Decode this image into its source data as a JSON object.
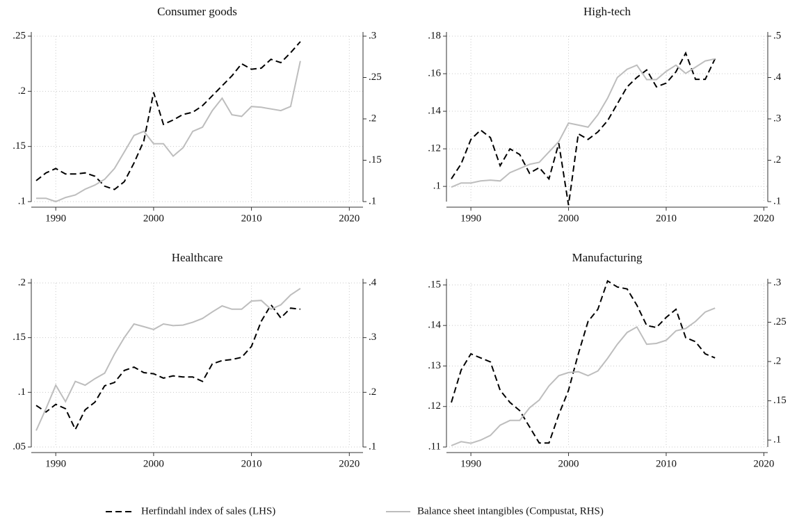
{
  "chart_data": [
    {
      "type": "line",
      "title": "Consumer goods",
      "legend": "bottom",
      "x": [
        1988,
        1989,
        1990,
        1991,
        1992,
        1993,
        1994,
        1995,
        1996,
        1997,
        1998,
        1999,
        2000,
        2001,
        2002,
        2003,
        2004,
        2005,
        2006,
        2007,
        2008,
        2009,
        2010,
        2011,
        2012,
        2013,
        2014,
        2015
      ],
      "xlim": [
        1987.5,
        2021.4
      ],
      "xticks": [
        1990,
        2000,
        2010,
        2020
      ],
      "ylim": [
        0.1,
        0.25
      ],
      "yticks": [
        {
          "value": 0.1,
          "label": ".1"
        },
        {
          "value": 0.15,
          "label": ".15"
        },
        {
          "value": 0.2,
          "label": ".2"
        },
        {
          "value": 0.25,
          "label": ".25"
        }
      ],
      "y2lim": [
        0.1,
        0.3
      ],
      "y2ticks": [
        {
          "value": 0.1,
          "label": ".1"
        },
        {
          "value": 0.15,
          "label": ".15"
        },
        {
          "value": 0.2,
          "label": ".2"
        },
        {
          "value": 0.25,
          "label": ".25"
        },
        {
          "value": 0.3,
          "label": ".3"
        }
      ],
      "grid": true,
      "series": [
        {
          "name": "Herfindahl index of sales (LHS)",
          "color": "#000000",
          "style": "dashed",
          "values": [
            0.119,
            0.126,
            0.13,
            0.125,
            0.125,
            0.126,
            0.123,
            0.114,
            0.111,
            0.118,
            0.135,
            0.155,
            0.199,
            0.17,
            0.174,
            0.179,
            0.181,
            0.187,
            0.196,
            0.205,
            0.214,
            0.225,
            0.22,
            0.221,
            0.229,
            0.226,
            0.235,
            0.245
          ]
        },
        {
          "name": "Balance sheet intangibles (Compustat, RHS)",
          "color": "#bdbdbd",
          "style": "solid",
          "axis": "y2",
          "values": [
            0.104,
            0.104,
            0.1,
            0.105,
            0.108,
            0.115,
            0.12,
            0.127,
            0.14,
            0.16,
            0.18,
            0.185,
            0.17,
            0.17,
            0.155,
            0.165,
            0.185,
            0.19,
            0.21,
            0.225,
            0.205,
            0.203,
            0.215,
            0.214,
            0.212,
            0.21,
            0.215,
            0.27
          ]
        }
      ]
    },
    {
      "type": "line",
      "title": "High-tech",
      "x": [
        1988,
        1989,
        1990,
        1991,
        1992,
        1993,
        1994,
        1995,
        1996,
        1997,
        1998,
        1999,
        2000,
        2001,
        2002,
        2003,
        2004,
        2005,
        2006,
        2007,
        2008,
        2009,
        2010,
        2011,
        2012,
        2013,
        2014,
        2015
      ],
      "xlim": [
        1987.5,
        2020.4
      ],
      "xticks": [
        1990,
        2000,
        2010,
        2020
      ],
      "ylim": [
        0.0919,
        0.18
      ],
      "yticks": [
        {
          "value": 0.1,
          "label": ".1"
        },
        {
          "value": 0.12,
          "label": ".12"
        },
        {
          "value": 0.14,
          "label": ".14"
        },
        {
          "value": 0.16,
          "label": ".16"
        },
        {
          "value": 0.18,
          "label": ".18"
        }
      ],
      "y2lim": [
        0.1,
        0.5
      ],
      "y2ticks": [
        {
          "value": 0.1,
          "label": ".1"
        },
        {
          "value": 0.2,
          "label": ".2"
        },
        {
          "value": 0.3,
          "label": ".3"
        },
        {
          "value": 0.4,
          "label": ".4"
        },
        {
          "value": 0.5,
          "label": ".5"
        }
      ],
      "grid": true,
      "series": [
        {
          "name": "Herfindahl index of sales (LHS)",
          "color": "#000000",
          "style": "dashed",
          "values": [
            0.104,
            0.112,
            0.125,
            0.13,
            0.126,
            0.111,
            0.12,
            0.117,
            0.107,
            0.11,
            0.104,
            0.123,
            0.09,
            0.128,
            0.125,
            0.129,
            0.135,
            0.144,
            0.153,
            0.158,
            0.162,
            0.153,
            0.155,
            0.161,
            0.171,
            0.157,
            0.157,
            0.168
          ]
        },
        {
          "name": "Balance sheet intangibles (Compustat, RHS)",
          "color": "#bdbdbd",
          "style": "solid",
          "axis": "y2",
          "values": [
            0.135,
            0.145,
            0.145,
            0.15,
            0.152,
            0.15,
            0.17,
            0.18,
            0.19,
            0.195,
            0.22,
            0.245,
            0.29,
            0.285,
            0.28,
            0.31,
            0.35,
            0.4,
            0.42,
            0.43,
            0.395,
            0.395,
            0.415,
            0.43,
            0.41,
            0.425,
            0.44,
            0.445
          ]
        }
      ]
    },
    {
      "type": "line",
      "title": "Healthcare",
      "x": [
        1988,
        1989,
        1990,
        1991,
        1992,
        1993,
        1994,
        1995,
        1996,
        1997,
        1998,
        1999,
        2000,
        2001,
        2002,
        2003,
        2004,
        2005,
        2006,
        2007,
        2008,
        2009,
        2010,
        2011,
        2012,
        2013,
        2014,
        2015
      ],
      "xlim": [
        1987.5,
        2021.4
      ],
      "xticks": [
        1990,
        2000,
        2010,
        2020
      ],
      "ylim": [
        0.05,
        0.2
      ],
      "yticks": [
        {
          "value": 0.05,
          "label": ".05"
        },
        {
          "value": 0.1,
          "label": ".1"
        },
        {
          "value": 0.15,
          "label": ".15"
        },
        {
          "value": 0.2,
          "label": ".2"
        }
      ],
      "y2lim": [
        0.1,
        0.4
      ],
      "y2ticks": [
        {
          "value": 0.1,
          "label": ".1"
        },
        {
          "value": 0.2,
          "label": ".2"
        },
        {
          "value": 0.3,
          "label": ".3"
        },
        {
          "value": 0.4,
          "label": ".4"
        }
      ],
      "grid": true,
      "series": [
        {
          "name": "Herfindahl index of sales (LHS)",
          "color": "#000000",
          "style": "dashed",
          "values": [
            0.088,
            0.082,
            0.089,
            0.085,
            0.066,
            0.084,
            0.091,
            0.106,
            0.109,
            0.12,
            0.123,
            0.118,
            0.117,
            0.113,
            0.115,
            0.114,
            0.114,
            0.11,
            0.126,
            0.129,
            0.13,
            0.132,
            0.142,
            0.165,
            0.18,
            0.168,
            0.177,
            0.176
          ]
        },
        {
          "name": "Balance sheet intangibles (Compustat, RHS)",
          "color": "#bdbdbd",
          "style": "solid",
          "axis": "y2",
          "values": [
            0.13,
            0.17,
            0.213,
            0.183,
            0.22,
            0.213,
            0.225,
            0.235,
            0.27,
            0.3,
            0.325,
            0.32,
            0.315,
            0.325,
            0.322,
            0.323,
            0.328,
            0.335,
            0.347,
            0.358,
            0.352,
            0.352,
            0.367,
            0.368,
            0.352,
            0.36,
            0.378,
            0.39
          ]
        }
      ]
    },
    {
      "type": "line",
      "title": "Manufacturing",
      "x": [
        1988,
        1989,
        1990,
        1991,
        1992,
        1993,
        1994,
        1995,
        1996,
        1997,
        1998,
        1999,
        2000,
        2001,
        2002,
        2003,
        2004,
        2005,
        2006,
        2007,
        2008,
        2009,
        2010,
        2011,
        2012,
        2013,
        2014,
        2015
      ],
      "xlim": [
        1987.5,
        2020.4
      ],
      "xticks": [
        1990,
        2000,
        2010,
        2020
      ],
      "ylim": [
        0.11,
        0.1505
      ],
      "yticks": [
        {
          "value": 0.11,
          "label": ".11"
        },
        {
          "value": 0.12,
          "label": ".12"
        },
        {
          "value": 0.13,
          "label": ".13"
        },
        {
          "value": 0.14,
          "label": ".14"
        },
        {
          "value": 0.15,
          "label": ".15"
        }
      ],
      "y2lim": [
        0.0912,
        0.3
      ],
      "y2ticks": [
        {
          "value": 0.1,
          "label": ".1"
        },
        {
          "value": 0.15,
          "label": ".15"
        },
        {
          "value": 0.2,
          "label": ".2"
        },
        {
          "value": 0.25,
          "label": ".25"
        },
        {
          "value": 0.3,
          "label": ".3"
        }
      ],
      "grid": true,
      "series": [
        {
          "name": "Herfindahl index of sales (LHS)",
          "color": "#000000",
          "style": "dashed",
          "values": [
            0.121,
            0.129,
            0.133,
            0.132,
            0.131,
            0.124,
            0.121,
            0.119,
            0.115,
            0.111,
            0.111,
            0.118,
            0.124,
            0.133,
            0.141,
            0.144,
            0.151,
            0.1495,
            0.149,
            0.145,
            0.14,
            0.1395,
            0.142,
            0.144,
            0.137,
            0.136,
            0.133,
            0.132
          ]
        },
        {
          "name": "Balance sheet intangibles (Compustat, RHS)",
          "color": "#bdbdbd",
          "style": "solid",
          "axis": "y2",
          "values": [
            0.093,
            0.098,
            0.096,
            0.1,
            0.106,
            0.119,
            0.125,
            0.125,
            0.141,
            0.151,
            0.169,
            0.182,
            0.186,
            0.187,
            0.182,
            0.188,
            0.204,
            0.222,
            0.237,
            0.244,
            0.222,
            0.223,
            0.227,
            0.239,
            0.242,
            0.251,
            0.263,
            0.268
          ]
        }
      ]
    }
  ]
}
